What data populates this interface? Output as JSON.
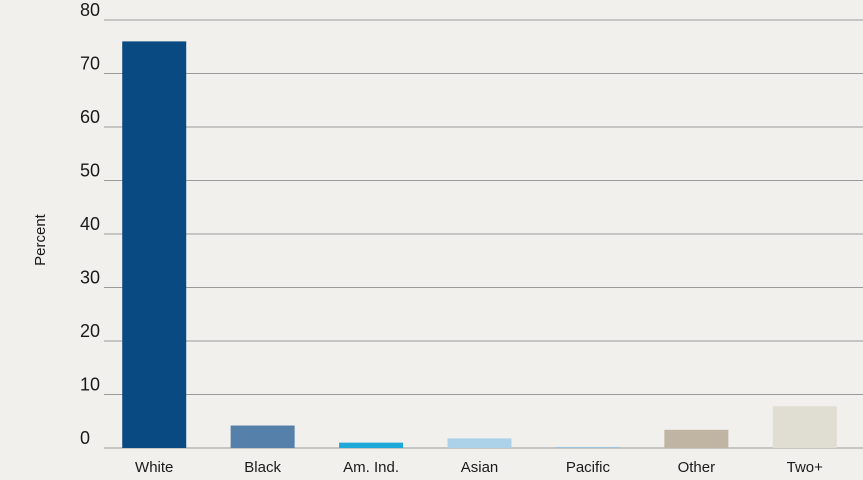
{
  "chart_data": {
    "type": "bar",
    "ylabel": "Percent",
    "xlabel": "",
    "ylim": [
      0,
      80
    ],
    "yticks": [
      0,
      10,
      20,
      30,
      40,
      50,
      60,
      70,
      80
    ],
    "grid": true,
    "categories": [
      "White",
      "Black",
      "Am. Ind.",
      "Asian",
      "Pacific",
      "Other",
      "Two+"
    ],
    "values": [
      76.0,
      4.2,
      1.0,
      1.8,
      0.2,
      3.4,
      7.8
    ],
    "colors": [
      "#0a4a82",
      "#5580aa",
      "#1ea7d9",
      "#acd2ea",
      "#9fc6e0",
      "#bfb5a2",
      "#e0ddd2"
    ]
  }
}
